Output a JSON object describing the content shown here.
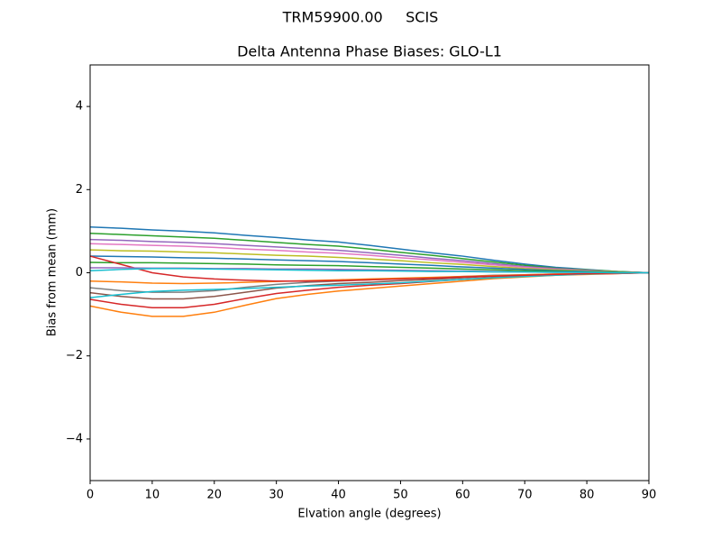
{
  "chart_data": {
    "type": "line",
    "suptitle": "TRM59900.00     SCIS",
    "title": "Delta Antenna Phase Biases: GLO-L1",
    "xlabel": "Elvation angle (degrees)",
    "ylabel": "Bias from mean (mm)",
    "xlim": [
      0,
      90
    ],
    "ylim": [
      -5,
      5
    ],
    "xticks": [
      0,
      10,
      20,
      30,
      40,
      50,
      60,
      70,
      80,
      90
    ],
    "yticks": [
      {
        "value": -4,
        "label": "−4"
      },
      {
        "value": -2,
        "label": "−2"
      },
      0,
      2,
      4
    ],
    "x": [
      0,
      5,
      10,
      15,
      20,
      25,
      30,
      35,
      40,
      45,
      50,
      55,
      60,
      65,
      70,
      75,
      80,
      85,
      90
    ],
    "series": [
      {
        "color": "#1f77b4",
        "values": [
          1.1,
          1.07,
          1.03,
          1.0,
          0.96,
          0.9,
          0.85,
          0.79,
          0.74,
          0.66,
          0.57,
          0.48,
          0.4,
          0.3,
          0.21,
          0.13,
          0.08,
          0.03,
          0
        ]
      },
      {
        "color": "#ff7f0e",
        "values": [
          -0.8,
          -0.95,
          -1.05,
          -1.05,
          -0.95,
          -0.78,
          -0.62,
          -0.52,
          -0.44,
          -0.38,
          -0.32,
          -0.26,
          -0.2,
          -0.14,
          -0.1,
          -0.06,
          -0.04,
          -0.02,
          0
        ]
      },
      {
        "color": "#2ca02c",
        "values": [
          0.95,
          0.92,
          0.89,
          0.86,
          0.83,
          0.78,
          0.73,
          0.68,
          0.64,
          0.57,
          0.49,
          0.42,
          0.34,
          0.26,
          0.18,
          0.11,
          0.07,
          0.03,
          0
        ]
      },
      {
        "color": "#d62728",
        "values": [
          -0.64,
          -0.76,
          -0.84,
          -0.84,
          -0.76,
          -0.62,
          -0.5,
          -0.42,
          -0.35,
          -0.3,
          -0.26,
          -0.21,
          -0.16,
          -0.11,
          -0.08,
          -0.05,
          -0.03,
          -0.02,
          0
        ]
      },
      {
        "color": "#9467bd",
        "values": [
          0.8,
          0.78,
          0.75,
          0.73,
          0.7,
          0.66,
          0.62,
          0.58,
          0.54,
          0.48,
          0.42,
          0.35,
          0.29,
          0.22,
          0.15,
          0.1,
          0.06,
          0.02,
          0
        ]
      },
      {
        "color": "#8c564b",
        "values": [
          -0.48,
          -0.57,
          -0.63,
          -0.63,
          -0.57,
          -0.47,
          -0.37,
          -0.31,
          -0.26,
          -0.23,
          -0.19,
          -0.16,
          -0.12,
          -0.08,
          -0.06,
          -0.04,
          -0.02,
          -0.01,
          0
        ]
      },
      {
        "color": "#e377c2",
        "values": [
          0.7,
          0.68,
          0.66,
          0.64,
          0.61,
          0.57,
          0.54,
          0.5,
          0.47,
          0.42,
          0.36,
          0.31,
          0.25,
          0.19,
          0.13,
          0.08,
          0.05,
          0.02,
          0
        ]
      },
      {
        "color": "#7f7f7f",
        "values": [
          -0.36,
          -0.43,
          -0.47,
          -0.47,
          -0.43,
          -0.35,
          -0.28,
          -0.23,
          -0.2,
          -0.17,
          -0.14,
          -0.12,
          -0.09,
          -0.06,
          -0.05,
          -0.03,
          -0.02,
          -0.01,
          0
        ]
      },
      {
        "color": "#bcbd22",
        "values": [
          0.55,
          0.53,
          0.52,
          0.5,
          0.48,
          0.45,
          0.42,
          0.4,
          0.37,
          0.33,
          0.29,
          0.24,
          0.2,
          0.15,
          0.1,
          0.07,
          0.04,
          0.02,
          0
        ]
      },
      {
        "color": "#17becf",
        "values": [
          -0.6,
          -0.52,
          -0.45,
          -0.42,
          -0.4,
          -0.38,
          -0.35,
          -0.32,
          -0.3,
          -0.27,
          -0.24,
          -0.2,
          -0.16,
          -0.12,
          -0.09,
          -0.06,
          -0.03,
          -0.01,
          0
        ]
      },
      {
        "color": "#1f77b4",
        "values": [
          0.4,
          0.39,
          0.38,
          0.36,
          0.35,
          0.33,
          0.31,
          0.29,
          0.27,
          0.24,
          0.21,
          0.18,
          0.14,
          0.11,
          0.08,
          0.05,
          0.03,
          0.01,
          0
        ]
      },
      {
        "color": "#ff7f0e",
        "values": [
          -0.2,
          -0.22,
          -0.25,
          -0.26,
          -0.25,
          -0.23,
          -0.21,
          -0.19,
          -0.17,
          -0.15,
          -0.13,
          -0.11,
          -0.09,
          -0.07,
          -0.05,
          -0.03,
          -0.02,
          -0.01,
          0
        ]
      },
      {
        "color": "#2ca02c",
        "values": [
          0.25,
          0.24,
          0.24,
          0.23,
          0.22,
          0.21,
          0.19,
          0.18,
          0.17,
          0.15,
          0.13,
          0.11,
          0.09,
          0.07,
          0.05,
          0.03,
          0.02,
          0.01,
          0
        ]
      },
      {
        "color": "#d62728",
        "values": [
          0.4,
          0.2,
          0.0,
          -0.1,
          -0.15,
          -0.18,
          -0.2,
          -0.2,
          -0.19,
          -0.17,
          -0.15,
          -0.13,
          -0.1,
          -0.08,
          -0.06,
          -0.04,
          -0.02,
          -0.01,
          0
        ]
      },
      {
        "color": "#9467bd",
        "values": [
          0.12,
          0.12,
          0.11,
          0.11,
          0.1,
          0.1,
          0.09,
          0.09,
          0.08,
          0.07,
          0.06,
          0.05,
          0.04,
          0.03,
          0.02,
          0.01,
          0.01,
          0,
          0
        ]
      },
      {
        "color": "#17becf",
        "values": [
          0.05,
          0.08,
          0.1,
          0.1,
          0.09,
          0.08,
          0.07,
          0.06,
          0.05,
          0.05,
          0.04,
          0.03,
          0.03,
          0.02,
          0.02,
          0.01,
          0.01,
          0,
          0
        ]
      }
    ]
  }
}
